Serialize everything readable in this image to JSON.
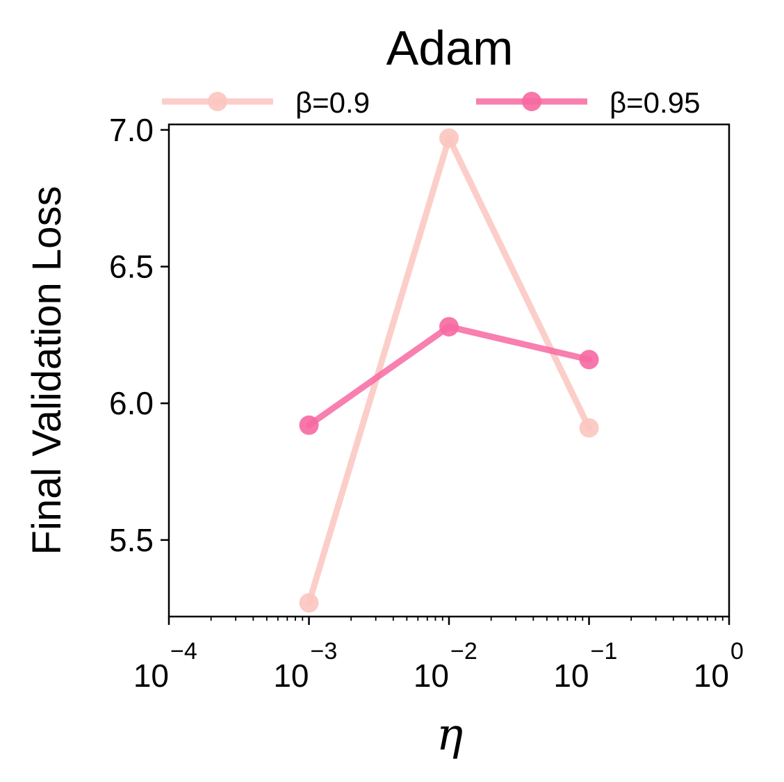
{
  "chart_data": {
    "type": "line",
    "title": "Adam",
    "xlabel": "η",
    "ylabel": "Final Validation Loss",
    "x_scale": "log",
    "xlim": [
      0.0001,
      1
    ],
    "ylim": [
      5.22,
      7.02
    ],
    "x_ticks": [
      {
        "base": "10",
        "exp": "−4",
        "value": 0.0001
      },
      {
        "base": "10",
        "exp": "−3",
        "value": 0.001
      },
      {
        "base": "10",
        "exp": "−2",
        "value": 0.01
      },
      {
        "base": "10",
        "exp": "−1",
        "value": 0.1
      },
      {
        "base": "10",
        "exp": "0",
        "value": 1
      }
    ],
    "y_ticks": [
      {
        "label": "5.5",
        "value": 5.5
      },
      {
        "label": "6.0",
        "value": 6.0
      },
      {
        "label": "6.5",
        "value": 6.5
      },
      {
        "label": "7.0",
        "value": 7.0
      }
    ],
    "grid": false,
    "legend_position": "top",
    "series": [
      {
        "name": "β=0.9",
        "color": "#fcc5c0",
        "x": [
          0.001,
          0.01,
          0.1
        ],
        "values": [
          5.27,
          6.97,
          5.91
        ]
      },
      {
        "name": "β=0.95",
        "color": "#f768a1",
        "x": [
          0.001,
          0.01,
          0.1
        ],
        "values": [
          5.92,
          6.28,
          6.16
        ]
      }
    ]
  }
}
